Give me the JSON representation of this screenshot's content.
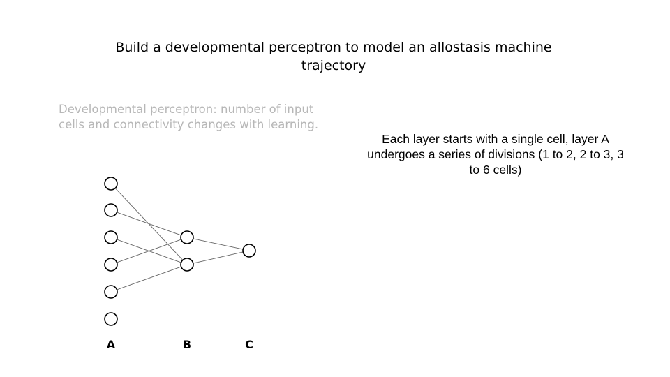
{
  "title": "Build a developmental perceptron to model an allostasis machine trajectory",
  "subtitle": "Developmental perceptron: number of input cells and connectivity changes with learning.",
  "note": "Each layer starts with a single cell, layer A undergoes a series of divisions (1 to 2, 2 to 3, 3 to 6 cells)",
  "diagram": {
    "layers": [
      {
        "label": "A",
        "cells": 6
      },
      {
        "label": "B",
        "cells": 2
      },
      {
        "label": "C",
        "cells": 1
      }
    ],
    "connections": [
      {
        "from": "A1",
        "to": "B2"
      },
      {
        "from": "A2",
        "to": "B1"
      },
      {
        "from": "A3",
        "to": "B2"
      },
      {
        "from": "A4",
        "to": "B1"
      },
      {
        "from": "A5",
        "to": "B2"
      },
      {
        "from": "B1",
        "to": "C1"
      },
      {
        "from": "B2",
        "to": "C1"
      }
    ]
  }
}
